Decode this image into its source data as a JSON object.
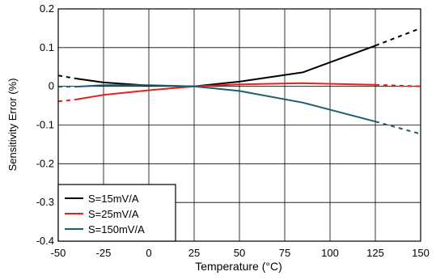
{
  "chart_data": {
    "type": "line",
    "xlabel": "Temperature (°C)",
    "ylabel": "Sensitivity Error (%)",
    "xlim": [
      -50,
      150
    ],
    "ylim": [
      -0.4,
      0.2
    ],
    "x_ticks": [
      -50,
      -25,
      0,
      25,
      50,
      75,
      100,
      125,
      150
    ],
    "y_ticks": [
      0.2,
      0.1,
      0,
      -0.1,
      -0.2,
      -0.3,
      -0.4
    ],
    "x_tick_labels": [
      "-50",
      "-25",
      "0",
      "25",
      "50",
      "75",
      "100",
      "125",
      "150"
    ],
    "y_tick_labels": [
      "0.2",
      "0.1",
      "0",
      "-0.1",
      "-0.2",
      "-0.3",
      "-0.4"
    ],
    "grid": true,
    "legend_position": "bottom-left",
    "series": [
      {
        "name": "S=15mV/A",
        "color": "#000000",
        "solid": [
          [
            -40,
            0.02
          ],
          [
            -25,
            0.01
          ],
          [
            0,
            0.002
          ],
          [
            25,
            0.0
          ],
          [
            50,
            0.012
          ],
          [
            85,
            0.036
          ],
          [
            125,
            0.105
          ]
        ],
        "dashed_low": [
          [
            -50,
            0.028
          ],
          [
            -40,
            0.02
          ]
        ],
        "dashed_high": [
          [
            125,
            0.105
          ],
          [
            150,
            0.15
          ]
        ]
      },
      {
        "name": "S=25mV/A",
        "color": "#e8201a",
        "solid": [
          [
            -40,
            -0.034
          ],
          [
            -25,
            -0.022
          ],
          [
            0,
            -0.01
          ],
          [
            25,
            0.0
          ],
          [
            50,
            0.005
          ],
          [
            85,
            0.008
          ],
          [
            125,
            0.004
          ]
        ],
        "dashed_low": [
          [
            -50,
            -0.039
          ],
          [
            -40,
            -0.034
          ]
        ],
        "dashed_high": [
          [
            125,
            0.004
          ],
          [
            150,
            0.0
          ]
        ]
      },
      {
        "name": "S=150mV/A",
        "color": "#1d5e6e",
        "solid": [
          [
            -40,
            -0.001
          ],
          [
            -25,
            0.003
          ],
          [
            0,
            0.003
          ],
          [
            25,
            0.0
          ],
          [
            50,
            -0.012
          ],
          [
            85,
            -0.042
          ],
          [
            125,
            -0.091
          ]
        ],
        "dashed_low": [
          [
            -50,
            -0.001
          ],
          [
            -40,
            -0.001
          ]
        ],
        "dashed_high": [
          [
            125,
            -0.091
          ],
          [
            150,
            -0.123
          ]
        ]
      }
    ]
  }
}
